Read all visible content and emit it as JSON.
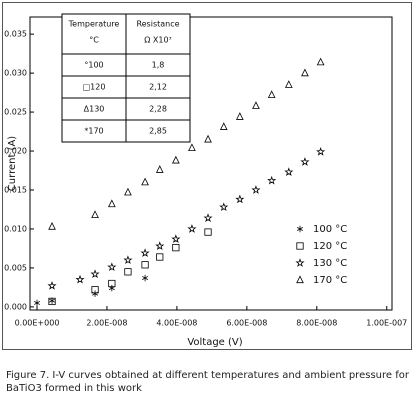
{
  "chart_data": {
    "type": "scatter",
    "xlabel": "Voltage (V)",
    "ylabel": "Current (A)",
    "xlim": [
      -2e-09,
      1.015e-07
    ],
    "xticks": [
      {
        "value": 0,
        "label": "0.00E+000"
      },
      {
        "value": 2e-08,
        "label": "2.00E-008"
      },
      {
        "value": 4e-08,
        "label": "4.00E-008"
      },
      {
        "value": 6e-08,
        "label": "6.00E-008"
      },
      {
        "value": 8e-08,
        "label": "8.00E-008"
      },
      {
        "value": 1e-07,
        "label": "1.00E-007"
      }
    ],
    "ylim": [
      -0.0004,
      0.0372
    ],
    "yticks": [
      {
        "value": 0,
        "label": "0.000"
      },
      0.005,
      {
        "value": 0.01,
        "label": "0.010"
      },
      0.015,
      {
        "value": 0.02,
        "label": "0.020"
      },
      0.025,
      {
        "value": 0.03,
        "label": "0.030"
      },
      0.035
    ],
    "legend_position": "lower right",
    "series": [
      {
        "name": "100 °C",
        "marker": "asterisk",
        "color": "#000000",
        "x": [
          0,
          4.3e-09,
          1.66e-08,
          2.14e-08,
          3.09e-08
        ],
        "values": [
          0.0005,
          0.0008,
          0.0017,
          0.0024,
          0.0037
        ]
      },
      {
        "name": "120 °C",
        "marker": "square",
        "color": "#000000",
        "x": [
          4.3e-09,
          1.66e-08,
          2.14e-08,
          2.6e-08,
          3.09e-08,
          3.51e-08,
          3.97e-08,
          4.89e-08
        ],
        "values": [
          0.0007,
          0.0022,
          0.003,
          0.0045,
          0.0054,
          0.0064,
          0.0076,
          0.0096
        ]
      },
      {
        "name": "130 °C",
        "marker": "star",
        "color": "#000000",
        "x": [
          4.3e-09,
          1.23e-08,
          1.66e-08,
          2.14e-08,
          2.6e-08,
          3.09e-08,
          3.51e-08,
          3.97e-08,
          4.43e-08,
          4.89e-08,
          5.34e-08,
          5.8e-08,
          6.26e-08,
          6.71e-08,
          7.2e-08,
          7.66e-08,
          8.11e-08
        ],
        "values": [
          0.0027,
          0.0035,
          0.0042,
          0.0051,
          0.006,
          0.0069,
          0.0078,
          0.0087,
          0.01,
          0.0114,
          0.0128,
          0.0138,
          0.015,
          0.0162,
          0.0173,
          0.0186,
          0.0199
        ]
      },
      {
        "name": "170 °C",
        "marker": "triangle",
        "color": "#000000",
        "x": [
          4.3e-09,
          1.66e-08,
          2.14e-08,
          2.6e-08,
          3.09e-08,
          3.51e-08,
          3.97e-08,
          4.43e-08,
          4.89e-08,
          5.34e-08,
          5.8e-08,
          6.26e-08,
          6.71e-08,
          7.2e-08,
          7.66e-08,
          8.11e-08
        ],
        "values": [
          0.0103,
          0.0118,
          0.0132,
          0.0147,
          0.016,
          0.0176,
          0.0188,
          0.0204,
          0.0215,
          0.0231,
          0.0244,
          0.0258,
          0.0272,
          0.0285,
          0.03,
          0.0314
        ]
      }
    ],
    "inset_table": {
      "columns": [
        [
          "Temperature",
          "°C"
        ],
        [
          "Resistance",
          "Ω X10⁷"
        ]
      ],
      "rows": [
        [
          "°100",
          "1,8"
        ],
        [
          "□120",
          "2,12"
        ],
        [
          "Δ130",
          "2,28"
        ],
        [
          "*170",
          "2,85"
        ]
      ]
    },
    "caption": "Figure 7.  I-V curves obtained at different temperatures and ambient pressure for BaTiO3 formed in this work"
  }
}
